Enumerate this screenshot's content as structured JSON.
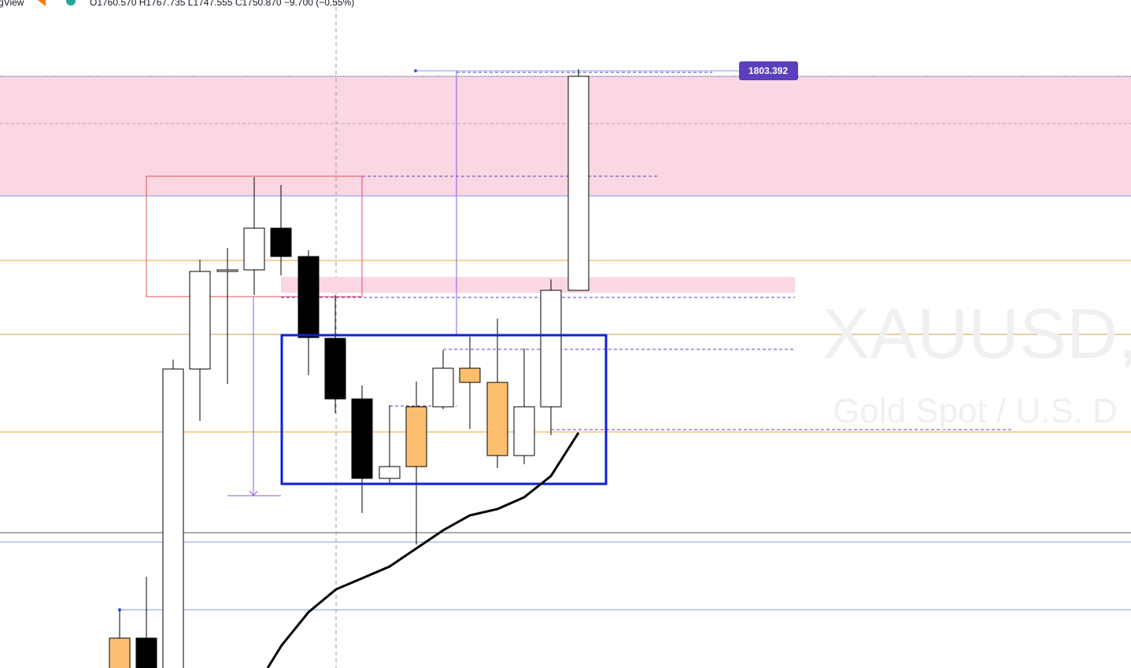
{
  "header": {
    "brand": "gView",
    "ohlc": "O1760.570 H1767.735 L1747.555 C1750.870 −9.700 (−0.55%)"
  },
  "price_label": "1803.392",
  "watermark": {
    "symbol": "XAUUSD,",
    "description": "Gold Spot / U.S. D"
  }
}
